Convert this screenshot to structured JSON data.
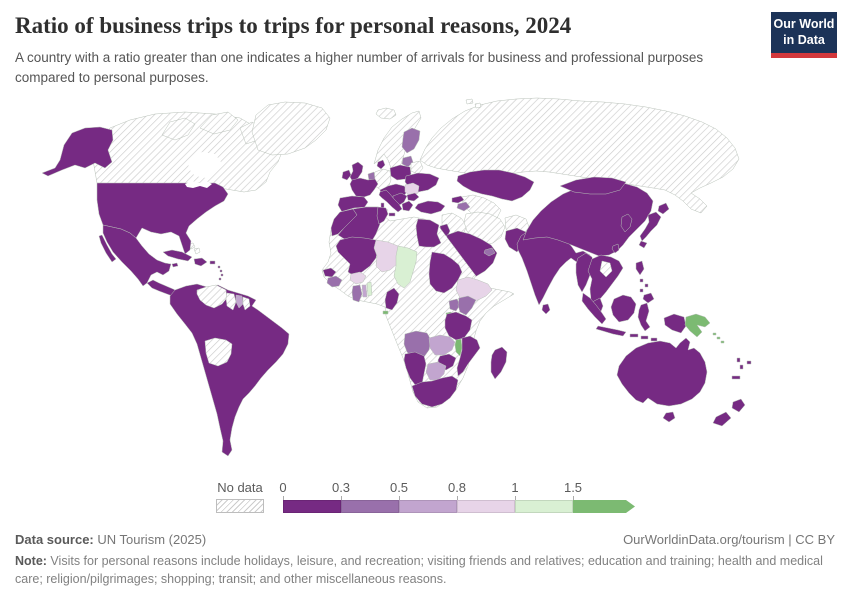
{
  "header": {
    "title": "Ratio of business trips to trips for personal reasons, 2024",
    "subtitle": "A country with a ratio greater than one indicates a higher number of arrivals for business and professional purposes compared to personal purposes.",
    "logo": {
      "line1": "Our World",
      "line2": "in Data"
    }
  },
  "legend": {
    "no_data_label": "No data",
    "ticks": [
      "0",
      "0.3",
      "0.5",
      "0.8",
      "1",
      "1.5"
    ],
    "bins": [
      {
        "label": "0–0.3",
        "color": "#762a83"
      },
      {
        "label": "0.3–0.5",
        "color": "#9970ab"
      },
      {
        "label": "0.5–0.8",
        "color": "#c2a5cf"
      },
      {
        "label": "0.8–1",
        "color": "#e7d4e8"
      },
      {
        "label": "1–1.5",
        "color": "#d9f0d3"
      },
      {
        "label": "1.5+",
        "color": "#7cba72"
      }
    ],
    "no_data_color_lines": "#cccccc"
  },
  "chart_data": {
    "type": "heatmap",
    "subtype": "world-choropleth",
    "title": "Ratio of business trips to trips for personal reasons, 2024",
    "unit": "ratio of business to personal arrivals",
    "legend_position": "bottom",
    "bins": [
      {
        "label": "0–0.3",
        "color": "#762a83",
        "countries": [
          "United States",
          "Mexico",
          "Central America",
          "Cuba",
          "Dominican Republic & Haiti",
          "Brazil",
          "Argentina",
          "Chile",
          "Peru",
          "Ecuador",
          "Colombia",
          "Paraguay",
          "Uruguay",
          "United Kingdom",
          "Ireland",
          "France",
          "Spain & Portugal",
          "Italy",
          "Denmark",
          "Poland",
          "Ukraine",
          "Balkans",
          "Bulgaria",
          "Greece",
          "Turkey",
          "Georgia",
          "Kazakhstan",
          "Israel & Jordan",
          "Saudi Arabia, Yemen & Oman",
          "Egypt",
          "Pakistan",
          "India",
          "Sri Lanka",
          "China",
          "Mongolia",
          "South Korea",
          "Japan",
          "Taiwan",
          "Myanmar",
          "Thailand, Vietnam & Cambodia",
          "Malaysia",
          "Indonesia",
          "Philippines",
          "Morocco",
          "Algeria",
          "Tunisia",
          "Mali",
          "Senegal",
          "Sudan",
          "Cameroon",
          "Tanzania",
          "Mozambique",
          "Zimbabwe",
          "Namibia",
          "South Africa",
          "Madagascar",
          "Australia",
          "New Zealand",
          "Fiji"
        ]
      },
      {
        "label": "0.3–0.5",
        "color": "#9970ab",
        "countries": [
          "Finland",
          "Netherlands & Belgium",
          "Baltic states",
          "Azerbaijan",
          "United Arab Emirates",
          "Guinea",
          "Ghana",
          "Uganda",
          "Kenya",
          "Angola"
        ]
      },
      {
        "label": "0.5–0.8",
        "color": "#c2a5cf",
        "countries": [
          "Suriname",
          "Togo",
          "Zambia",
          "Botswana"
        ]
      },
      {
        "label": "0.8–1",
        "color": "#e7d4e8",
        "countries": [
          "Romania",
          "Niger",
          "Ethiopia",
          "Burkina Faso"
        ]
      },
      {
        "label": "1–1.5",
        "color": "#d9f0d3",
        "countries": [
          "Chad",
          "Benin"
        ]
      },
      {
        "label": "1.5+",
        "color": "#7cba72",
        "countries": [
          "Papua New Guinea",
          "Solomon Islands",
          "Malawi",
          "Rwanda & Burundi",
          "Equatorial Guinea"
        ]
      },
      {
        "label": "No data",
        "color": "hatched",
        "countries": [
          "Canada",
          "Greenland",
          "Bahamas",
          "Venezuela",
          "Guyana",
          "French Guiana",
          "Bolivia",
          "Iceland",
          "Norway & Sweden",
          "Germany",
          "Belarus",
          "Russia",
          "Uzbekistan & Turkmenistan",
          "Syria & Iraq",
          "Iran",
          "Afghanistan",
          "Laos",
          "Libya",
          "Mauritania",
          "Nigeria",
          "Côte d'Ivoire",
          "DR Congo",
          "Somalia"
        ]
      }
    ]
  },
  "map": {
    "regions": {
      "united-states": {
        "name": "United States",
        "bin": 0
      },
      "canada": {
        "name": "Canada",
        "bin": "no-data"
      },
      "greenland": {
        "name": "Greenland",
        "bin": "no-data"
      },
      "mexico": {
        "name": "Mexico",
        "bin": 0
      },
      "central-america": {
        "name": "Guatemala, Honduras, Nicaragua, Costa Rica, Panama",
        "bin": 0
      },
      "cuba": {
        "name": "Cuba",
        "bin": 0
      },
      "hispaniola": {
        "name": "Dominican Republic & Haiti",
        "bin": 0
      },
      "jamaica": {
        "name": "Jamaica",
        "bin": 0
      },
      "puerto-rico": {
        "name": "Puerto Rico",
        "bin": 0
      },
      "lesser-antilles": {
        "name": "Lesser Antilles",
        "bin": 0
      },
      "bahamas": {
        "name": "Bahamas",
        "bin": "no-data"
      },
      "south-america-core": {
        "name": "Brazil, Argentina, Chile, Peru, Ecuador, Colombia, Paraguay, Uruguay",
        "bin": 0
      },
      "venezuela": {
        "name": "Venezuela",
        "bin": "no-data"
      },
      "guyana": {
        "name": "Guyana",
        "bin": "no-data"
      },
      "suriname": {
        "name": "Suriname",
        "bin": 2
      },
      "french-guiana": {
        "name": "French Guiana",
        "bin": "no-data"
      },
      "bolivia": {
        "name": "Bolivia",
        "bin": "no-data"
      },
      "iceland": {
        "name": "Iceland",
        "bin": "no-data"
      },
      "united-kingdom": {
        "name": "United Kingdom",
        "bin": 0
      },
      "ireland": {
        "name": "Ireland",
        "bin": 0
      },
      "norway-sweden": {
        "name": "Norway & Sweden",
        "bin": "no-data"
      },
      "finland": {
        "name": "Finland",
        "bin": 1
      },
      "denmark": {
        "name": "Denmark",
        "bin": 0
      },
      "germany": {
        "name": "Germany",
        "bin": "no-data"
      },
      "netherlands": {
        "name": "Netherlands & Belgium",
        "bin": 1
      },
      "france": {
        "name": "France",
        "bin": 0
      },
      "spain-portugal": {
        "name": "Spain & Portugal",
        "bin": 0
      },
      "italy": {
        "name": "Italy",
        "bin": 0
      },
      "central-europe": {
        "name": "Switzerland, Austria, Czechia, Hungary",
        "bin": 0
      },
      "poland": {
        "name": "Poland",
        "bin": 0
      },
      "baltics": {
        "name": "Baltic states",
        "bin": 1
      },
      "belarus": {
        "name": "Belarus",
        "bin": "no-data"
      },
      "ukraine": {
        "name": "Ukraine",
        "bin": 0
      },
      "romania": {
        "name": "Romania",
        "bin": 3
      },
      "balkans": {
        "name": "Western Balkans",
        "bin": 0
      },
      "bulgaria": {
        "name": "Bulgaria",
        "bin": 0
      },
      "greece": {
        "name": "Greece",
        "bin": 0
      },
      "russia": {
        "name": "Russia",
        "bin": "no-data"
      },
      "kazakhstan": {
        "name": "Kazakhstan",
        "bin": 0
      },
      "central-asia": {
        "name": "Uzbekistan & Turkmenistan",
        "bin": "no-data"
      },
      "georgia": {
        "name": "Georgia",
        "bin": 0
      },
      "azerbaijan": {
        "name": "Azerbaijan",
        "bin": 1
      },
      "turkey": {
        "name": "Turkey",
        "bin": 0
      },
      "syria-iraq": {
        "name": "Syria & Iraq",
        "bin": "no-data"
      },
      "iran": {
        "name": "Iran",
        "bin": "no-data"
      },
      "afghanistan": {
        "name": "Afghanistan",
        "bin": "no-data"
      },
      "israel-jordan": {
        "name": "Israel & Jordan",
        "bin": 0
      },
      "saudi-arabia": {
        "name": "Saudi Arabia, Yemen & Oman",
        "bin": 0
      },
      "uae": {
        "name": "United Arab Emirates",
        "bin": 1
      },
      "pakistan": {
        "name": "Pakistan",
        "bin": 0
      },
      "india": {
        "name": "India",
        "bin": 0
      },
      "sri-lanka": {
        "name": "Sri Lanka",
        "bin": 0
      },
      "china": {
        "name": "China",
        "bin": 0
      },
      "mongolia": {
        "name": "Mongolia",
        "bin": 0
      },
      "korea": {
        "name": "South Korea",
        "bin": 0
      },
      "japan": {
        "name": "Japan",
        "bin": 0
      },
      "taiwan": {
        "name": "Taiwan",
        "bin": 0
      },
      "myanmar": {
        "name": "Myanmar",
        "bin": 0
      },
      "thailand-indochina": {
        "name": "Thailand, Vietnam & Cambodia",
        "bin": 0
      },
      "laos": {
        "name": "Laos",
        "bin": "no-data"
      },
      "malaysia": {
        "name": "Malaysia",
        "bin": 0
      },
      "indonesia": {
        "name": "Indonesia",
        "bin": 0
      },
      "philippines": {
        "name": "Philippines",
        "bin": 0
      },
      "papua-new-guinea": {
        "name": "Papua New Guinea",
        "bin": 5
      },
      "solomon-islands": {
        "name": "Solomon Islands",
        "bin": 5
      },
      "fiji": {
        "name": "Fiji",
        "bin": 0
      },
      "vanuatu-nc": {
        "name": "Vanuatu & New Caledonia",
        "bin": 0
      },
      "australia": {
        "name": "Australia",
        "bin": 0
      },
      "new-zealand": {
        "name": "New Zealand",
        "bin": 0
      },
      "africa-nodata": {
        "name": "Libya, Mauritania, Nigeria, Côte d'Ivoire, DR Congo, Somalia and others",
        "bin": "no-data"
      },
      "morocco": {
        "name": "Morocco",
        "bin": 0
      },
      "algeria": {
        "name": "Algeria",
        "bin": 0
      },
      "tunisia": {
        "name": "Tunisia",
        "bin": 0
      },
      "egypt": {
        "name": "Egypt",
        "bin": 0
      },
      "mali": {
        "name": "Mali",
        "bin": 0
      },
      "niger": {
        "name": "Niger",
        "bin": 3
      },
      "chad": {
        "name": "Chad",
        "bin": 4
      },
      "sudan": {
        "name": "Sudan",
        "bin": 0
      },
      "ethiopia": {
        "name": "Ethiopia",
        "bin": 3
      },
      "senegal": {
        "name": "Senegal",
        "bin": 0
      },
      "guinea": {
        "name": "Guinea",
        "bin": 1
      },
      "burkina-faso": {
        "name": "Burkina Faso",
        "bin": 3
      },
      "ghana": {
        "name": "Ghana",
        "bin": 1
      },
      "togo": {
        "name": "Togo",
        "bin": 2
      },
      "benin": {
        "name": "Benin",
        "bin": 4
      },
      "cameroon": {
        "name": "Cameroon",
        "bin": 0
      },
      "equatorial-guinea": {
        "name": "Equatorial Guinea",
        "bin": 5
      },
      "uganda": {
        "name": "Uganda",
        "bin": 1
      },
      "kenya": {
        "name": "Kenya",
        "bin": 1
      },
      "rwanda-burundi": {
        "name": "Rwanda & Burundi",
        "bin": 5
      },
      "tanzania": {
        "name": "Tanzania",
        "bin": 0
      },
      "angola": {
        "name": "Angola",
        "bin": 1
      },
      "zambia": {
        "name": "Zambia",
        "bin": 2
      },
      "malawi": {
        "name": "Malawi",
        "bin": 5
      },
      "mozambique": {
        "name": "Mozambique",
        "bin": 0
      },
      "zimbabwe": {
        "name": "Zimbabwe",
        "bin": 0
      },
      "botswana": {
        "name": "Botswana",
        "bin": 2
      },
      "namibia": {
        "name": "Namibia",
        "bin": 0
      },
      "south-africa": {
        "name": "South Africa",
        "bin": 0
      },
      "madagascar": {
        "name": "Madagascar",
        "bin": 0
      }
    }
  },
  "footer": {
    "data_source_label": "Data source:",
    "data_source_value": " UN Tourism (2025)",
    "link": "OurWorldinData.org/tourism | CC BY",
    "note_label": "Note:",
    "note_text": " Visits for personal reasons include holidays, leisure, and recreation; visiting friends and relatives; education and training; health and medical care; religion/pilgrimages; shopping; transit; and other miscellaneous reasons."
  }
}
